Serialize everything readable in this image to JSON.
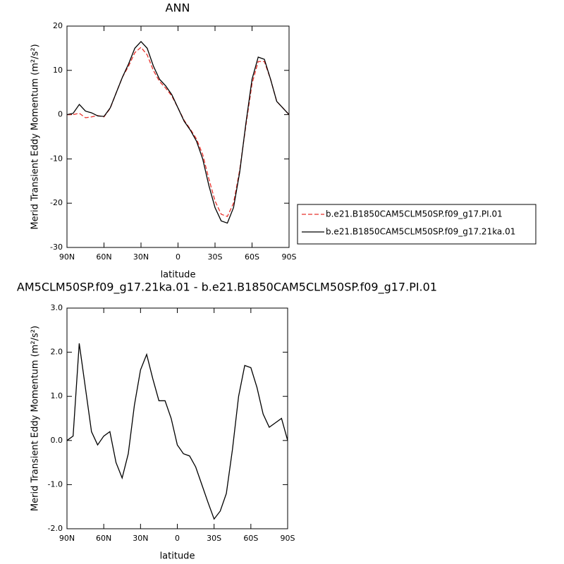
{
  "chart_data": [
    {
      "type": "line",
      "title": "ANN",
      "x_label": "latitude",
      "y_label": "Merid Transient Eddy Momentum (m²/s²)",
      "x": [
        90,
        85,
        80,
        75,
        70,
        65,
        60,
        55,
        50,
        45,
        40,
        35,
        30,
        25,
        20,
        15,
        10,
        5,
        0,
        -5,
        -10,
        -15,
        -20,
        -25,
        -30,
        -35,
        -40,
        -45,
        -50,
        -55,
        -60,
        -65,
        -70,
        -75,
        -80,
        -85,
        -90
      ],
      "xlim": [
        90,
        -90
      ],
      "xticks": [
        {
          "value": 90,
          "label": "90N"
        },
        {
          "value": 60,
          "label": "60N"
        },
        {
          "value": 30,
          "label": "30N"
        },
        0,
        {
          "value": -30,
          "label": "30S"
        },
        {
          "value": -60,
          "label": "60S"
        },
        {
          "value": -90,
          "label": "90S"
        }
      ],
      "ylim": [
        -30,
        20
      ],
      "yticks": [
        -30,
        -20,
        -10,
        0,
        10,
        20
      ],
      "legend_position": "right",
      "series": [
        {
          "name": "b.e21.B1850CAM5CLM50SP.f09_g17.PI.01",
          "color": "#e8302a",
          "line_style": "dashed",
          "values": [
            0,
            0,
            0.3,
            -0.7,
            -0.5,
            -0.2,
            -0.5,
            1.4,
            5,
            8.5,
            11,
            14,
            15.2,
            13.5,
            10,
            7.5,
            6,
            4.2,
            1.5,
            -1.3,
            -3.3,
            -5.5,
            -9,
            -14.5,
            -19.5,
            -22.5,
            -23,
            -20,
            -12.5,
            -2.5,
            7,
            12,
            12,
            8,
            3,
            1.5,
            0
          ]
        },
        {
          "name": "b.e21.B1850CAM5CLM50SP.f09_g17.21ka.01",
          "color": "#000000",
          "line_style": "solid",
          "values": [
            0,
            0.3,
            2.3,
            0.8,
            0.4,
            -0.3,
            -0.4,
            1.5,
            5,
            8.5,
            11.5,
            15,
            16.5,
            15,
            11,
            8,
            6.5,
            4.5,
            1.5,
            -1.5,
            -3.5,
            -6,
            -10,
            -16,
            -21,
            -24,
            -24.5,
            -21,
            -13,
            -2,
            8,
            13,
            12.5,
            8,
            3,
            1.5,
            0
          ]
        }
      ]
    },
    {
      "type": "line",
      "title": "AM5CLM50SP.f09_g17.21ka.01 - b.e21.B1850CAM5CLM50SP.f09_g17.PI.01",
      "x_label": "latitude",
      "y_label": "Merid Transient Eddy Momentum (m²/s²)",
      "x": [
        90,
        85,
        80,
        75,
        70,
        65,
        60,
        55,
        50,
        45,
        40,
        35,
        30,
        25,
        20,
        15,
        10,
        5,
        0,
        -5,
        -10,
        -15,
        -20,
        -25,
        -30,
        -35,
        -40,
        -45,
        -50,
        -55,
        -60,
        -65,
        -70,
        -75,
        -80,
        -85,
        -90
      ],
      "xlim": [
        90,
        -90
      ],
      "xticks": [
        {
          "value": 90,
          "label": "90N"
        },
        {
          "value": 60,
          "label": "60N"
        },
        {
          "value": 30,
          "label": "30N"
        },
        0,
        {
          "value": -30,
          "label": "30S"
        },
        {
          "value": -60,
          "label": "60S"
        },
        {
          "value": -90,
          "label": "90S"
        }
      ],
      "ylim": [
        -2,
        3
      ],
      "yticks": [
        {
          "value": -2,
          "label": "-2.0"
        },
        {
          "value": -1,
          "label": "-1.0"
        },
        {
          "value": 0,
          "label": "0.0"
        },
        {
          "value": 1,
          "label": "1.0"
        },
        {
          "value": 2,
          "label": "2.0"
        },
        {
          "value": 3,
          "label": "3.0"
        }
      ],
      "series": [
        {
          "color": "#000000",
          "line_style": "solid",
          "values": [
            0,
            0.1,
            2.2,
            1.2,
            0.2,
            -0.1,
            0.1,
            0.2,
            -0.5,
            -0.85,
            -0.3,
            0.8,
            1.6,
            1.95,
            1.4,
            0.9,
            0.9,
            0.5,
            -0.1,
            -0.3,
            -0.35,
            -0.6,
            -1.0,
            -1.4,
            -1.78,
            -1.6,
            -1.2,
            -0.2,
            1.0,
            1.7,
            1.65,
            1.2,
            0.6,
            0.3,
            0.4,
            0.5,
            0
          ]
        }
      ]
    }
  ]
}
